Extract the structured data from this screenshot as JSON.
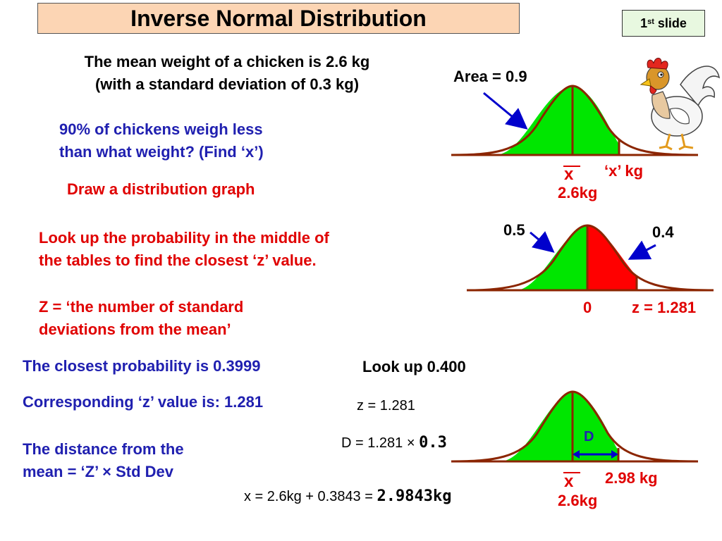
{
  "slide_title": "Inverse Normal Distribution",
  "slide_badge": {
    "number": "1",
    "suffix": "st",
    "label": "slide"
  },
  "problem": {
    "line1": "The mean weight of a chicken is 2.6 kg",
    "line2": "(with a standard deviation of 0.3 kg)"
  },
  "question": {
    "line1": "90% of chickens weigh less",
    "line2": "than what weight? (Find ‘x’)"
  },
  "step_draw": "Draw a distribution graph",
  "step_lookup": {
    "line1": "Look up the probability in the middle of",
    "line2": "the tables to find the closest ‘z’ value."
  },
  "z_definition": {
    "line1": "Z = ‘the number of standard",
    "line2": "deviations from the mean’"
  },
  "closest_probability": "The closest probability is 0.3999",
  "corresponding_z": "Corresponding ‘z’ value is: 1.281",
  "distance_formula": {
    "line1": "The distance from the",
    "line2": "mean = ‘Z’ × Std Dev"
  },
  "look_up": "Look up 0.400",
  "z_value": "z = 1.281",
  "d_equation": {
    "prefix": "D =  1.281 × ",
    "value": "0.3"
  },
  "x_equation": {
    "prefix": "x =  2.6kg + 0.3843 = ",
    "value": "2.9843kg"
  },
  "graph1": {
    "area_label": "Area = 0.9",
    "xbar": "x",
    "x_label": "‘x’ kg",
    "mean_label": "2.6kg"
  },
  "graph2": {
    "left_label": "0.5",
    "right_label": "0.4",
    "zero_label": "0",
    "z_label": "z = 1.281"
  },
  "graph3": {
    "d_label": "D",
    "xbar": "x",
    "value_label": "2.98 kg",
    "mean_label": "2.6kg"
  },
  "colors": {
    "green_fill": "#00e600",
    "red_fill": "#ff0000",
    "curve": "#8b2500",
    "blue_text": "#2020b0",
    "red_text": "#e00000",
    "title_bg": "#fcd5b4",
    "arrow": "#0000cc"
  },
  "icons": {
    "mascot": "rooster-icon"
  }
}
